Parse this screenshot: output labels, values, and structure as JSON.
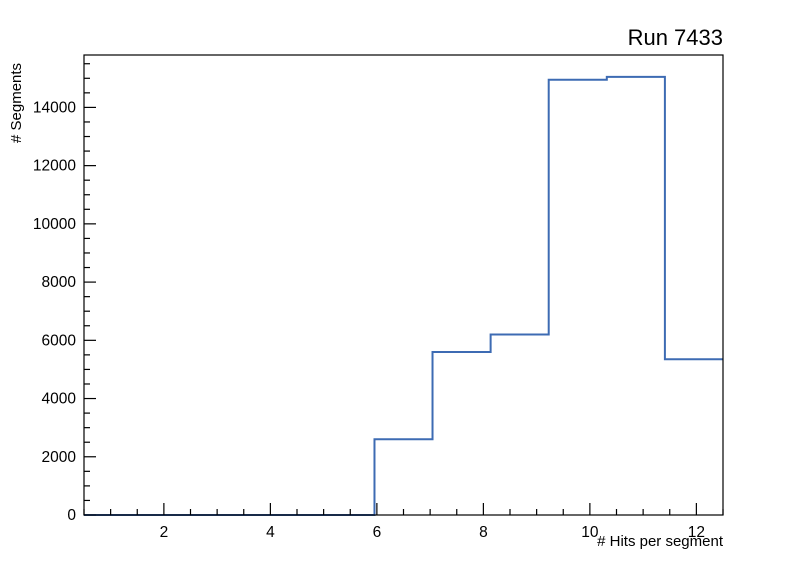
{
  "chart_data": {
    "type": "histogram-step",
    "title": "Run 7433",
    "xlabel": "# Hits per segment",
    "ylabel": "# Segments",
    "x_range": [
      0.5,
      12.5
    ],
    "y_range": [
      0,
      15800
    ],
    "x_major_ticks": [
      2,
      4,
      6,
      8,
      10,
      12
    ],
    "x_minor_step": 0.5,
    "y_major_ticks": [
      0,
      2000,
      4000,
      6000,
      8000,
      10000,
      12000,
      14000
    ],
    "y_minor_step": 500,
    "bin_edges": [
      0.5,
      1.591,
      2.682,
      3.773,
      4.864,
      5.955,
      7.045,
      8.136,
      9.227,
      10.318,
      11.409,
      12.5
    ],
    "bin_values": [
      0,
      0,
      0,
      0,
      0,
      2600,
      5600,
      6200,
      14950,
      15050,
      5350
    ],
    "line_color": "#3d6bb3",
    "frame_color": "#000000",
    "text_color": "#000000",
    "background_color": "#ffffff",
    "legend_position": "none",
    "grid": false
  }
}
